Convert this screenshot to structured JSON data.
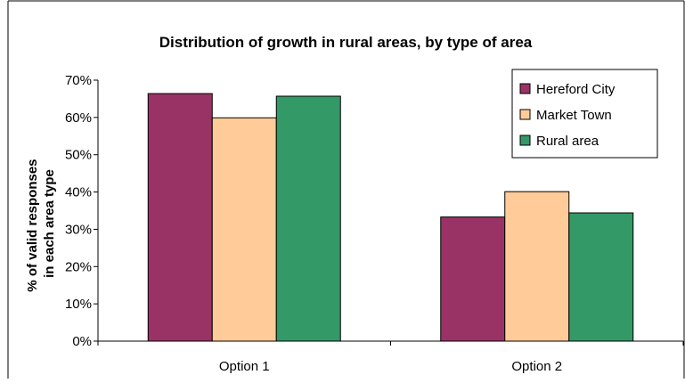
{
  "chart_data": {
    "type": "bar",
    "title": "Distribution of growth in rural areas, by type of area",
    "xlabel": "",
    "ylabel_lines": [
      "% of valid responses",
      "in each area type"
    ],
    "categories": [
      "Option 1",
      "Option 2"
    ],
    "ylim": [
      0,
      70
    ],
    "yticks": [
      "0%",
      "10%",
      "20%",
      "30%",
      "40%",
      "50%",
      "60%",
      "70%"
    ],
    "series": [
      {
        "name": "Hereford City",
        "color": "#993366",
        "values": [
          66.4,
          33.3
        ]
      },
      {
        "name": "Market Town",
        "color": "#FFCC99",
        "values": [
          59.9,
          40.1
        ]
      },
      {
        "name": "Rural area",
        "color": "#339966",
        "values": [
          65.7,
          34.4
        ]
      }
    ],
    "legend_position": "top-right",
    "grid": false
  }
}
